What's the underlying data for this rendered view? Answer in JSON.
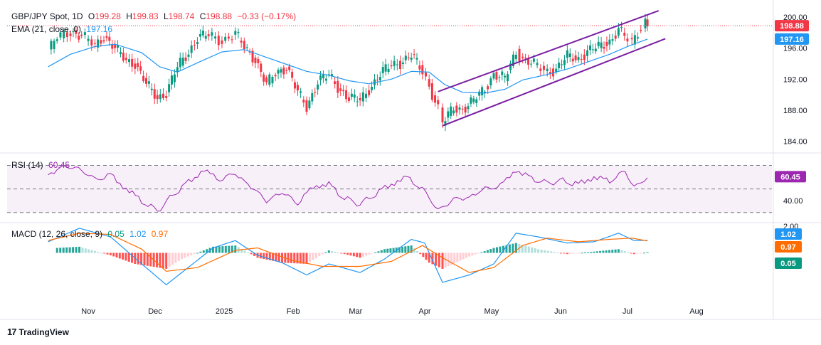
{
  "header": {
    "symbol": "GBP/JPY Spot, 1D",
    "open_label": "O",
    "open": "199.28",
    "high_label": "H",
    "high": "199.83",
    "low_label": "L",
    "low": "198.74",
    "close_label": "C",
    "close": "198.88",
    "change": "−0.33 (−0.17%)"
  },
  "ema_legend": {
    "label": "EMA (21, close, 0)",
    "value": "197.16"
  },
  "rsi_legend": {
    "label": "RSI (14)",
    "value": "60.45"
  },
  "macd_legend": {
    "label": "MACD (12, 26, close, 9)",
    "hist": "0.05",
    "macd": "1.02",
    "signal": "0.97"
  },
  "brand": {
    "name": "TradingView"
  },
  "colors": {
    "up": "#089981",
    "down": "#f23645",
    "ema": "#2196f3",
    "channel": "#7b1fa2",
    "rsi": "#9c27b0",
    "macd": "#2196f3",
    "signal": "#ff6d00"
  },
  "chart_data": [
    {
      "type": "candlestick",
      "title": "GBP/JPY Spot, 1D",
      "x_ticks": [
        "Nov",
        "Dec",
        "2025",
        "Feb",
        "Mar",
        "Apr",
        "May",
        "Jun",
        "Jul",
        "Aug"
      ],
      "y_ticks": [
        "200.00",
        "196.00",
        "192.00",
        "188.00",
        "184.00"
      ],
      "ylim": [
        182.6,
        200.9
      ],
      "price_tags": [
        {
          "value": 198.88,
          "label": "198.88",
          "color": "#f23645"
        },
        {
          "value": 197.16,
          "label": "197.16",
          "color": "#2196f3"
        }
      ],
      "close_path": [
        [
          "2024-10-14",
          195.6
        ],
        [
          "2024-10-18",
          197.3
        ],
        [
          "2024-10-24",
          198.2
        ],
        [
          "2024-10-29",
          197.5
        ],
        [
          "2024-11-04",
          196.3
        ],
        [
          "2024-11-08",
          197.6
        ],
        [
          "2024-11-13",
          195.9
        ],
        [
          "2024-11-18",
          194.4
        ],
        [
          "2024-11-22",
          194.1
        ],
        [
          "2024-11-27",
          191.3
        ],
        [
          "2024-12-02",
          189.6
        ],
        [
          "2024-12-06",
          190.3
        ],
        [
          "2024-12-11",
          193.5
        ],
        [
          "2024-12-16",
          195.5
        ],
        [
          "2024-12-20",
          197.4
        ],
        [
          "2024-12-25",
          197.6
        ],
        [
          "2024-12-31",
          197.0
        ],
        [
          "2025-01-06",
          197.8
        ],
        [
          "2025-01-10",
          196.1
        ],
        [
          "2025-01-15",
          194.6
        ],
        [
          "2025-01-20",
          191.2
        ],
        [
          "2025-01-24",
          192.8
        ],
        [
          "2025-01-29",
          193.6
        ],
        [
          "2025-02-03",
          190.2
        ],
        [
          "2025-02-07",
          188.4
        ],
        [
          "2025-02-12",
          191.8
        ],
        [
          "2025-02-17",
          192.4
        ],
        [
          "2025-02-21",
          191.0
        ],
        [
          "2025-02-26",
          189.6
        ],
        [
          "2025-03-03",
          189.2
        ],
        [
          "2025-03-07",
          190.8
        ],
        [
          "2025-03-12",
          192.6
        ],
        [
          "2025-03-17",
          193.8
        ],
        [
          "2025-03-21",
          194.2
        ],
        [
          "2025-03-26",
          195.0
        ],
        [
          "2025-03-31",
          193.0
        ],
        [
          "2025-04-03",
          191.2
        ],
        [
          "2025-04-07",
          188.2
        ],
        [
          "2025-04-09",
          186.3
        ],
        [
          "2025-04-14",
          188.3
        ],
        [
          "2025-04-18",
          188.2
        ],
        [
          "2025-04-23",
          189.2
        ],
        [
          "2025-04-28",
          190.8
        ],
        [
          "2025-05-02",
          192.7
        ],
        [
          "2025-05-07",
          192.0
        ],
        [
          "2025-05-12",
          195.6
        ],
        [
          "2025-05-15",
          194.7
        ],
        [
          "2025-05-20",
          193.8
        ],
        [
          "2025-05-26",
          193.0
        ],
        [
          "2025-05-30",
          193.3
        ],
        [
          "2025-06-04",
          194.9
        ],
        [
          "2025-06-09",
          194.6
        ],
        [
          "2025-06-13",
          195.6
        ],
        [
          "2025-06-18",
          196.1
        ],
        [
          "2025-06-23",
          196.9
        ],
        [
          "2025-06-27",
          198.4
        ],
        [
          "2025-07-01",
          197.0
        ],
        [
          "2025-07-03",
          196.6
        ],
        [
          "2025-07-07",
          198.8
        ],
        [
          "2025-07-09",
          199.6
        ],
        [
          "2025-07-10",
          198.88
        ]
      ],
      "ema21_path": [
        [
          "2024-10-14",
          193.6
        ],
        [
          "2024-10-24",
          195.2
        ],
        [
          "2024-11-04",
          196.2
        ],
        [
          "2024-11-13",
          196.5
        ],
        [
          "2024-11-25",
          195.4
        ],
        [
          "2024-12-03",
          193.6
        ],
        [
          "2024-12-11",
          192.9
        ],
        [
          "2024-12-20",
          194.1
        ],
        [
          "2024-12-31",
          195.5
        ],
        [
          "2025-01-10",
          195.8
        ],
        [
          "2025-01-20",
          194.8
        ],
        [
          "2025-01-29",
          193.9
        ],
        [
          "2025-02-07",
          193.0
        ],
        [
          "2025-02-17",
          192.5
        ],
        [
          "2025-02-26",
          191.8
        ],
        [
          "2025-03-07",
          191.4
        ],
        [
          "2025-03-17",
          192.0
        ],
        [
          "2025-03-26",
          193.0
        ],
        [
          "2025-04-03",
          192.9
        ],
        [
          "2025-04-10",
          191.3
        ],
        [
          "2025-04-18",
          190.3
        ],
        [
          "2025-04-28",
          190.2
        ],
        [
          "2025-05-07",
          190.7
        ],
        [
          "2025-05-15",
          191.9
        ],
        [
          "2025-05-26",
          192.6
        ],
        [
          "2025-06-04",
          193.3
        ],
        [
          "2025-06-13",
          194.2
        ],
        [
          "2025-06-23",
          195.2
        ],
        [
          "2025-07-01",
          196.2
        ],
        [
          "2025-07-10",
          197.16
        ]
      ],
      "channel_upper": [
        [
          "2025-04-07",
          190.4
        ],
        [
          "2025-07-15",
          200.8
        ]
      ],
      "channel_lower": [
        [
          "2025-04-09",
          186.0
        ],
        [
          "2025-07-18",
          197.2
        ]
      ],
      "last_price_line": 198.88
    },
    {
      "type": "line",
      "title": "RSI (14)",
      "y_ticks": [
        "60.45",
        "40.00"
      ],
      "levels": [
        70,
        50,
        30
      ],
      "ylim": [
        22,
        80
      ],
      "series": [
        {
          "name": "RSI (14)",
          "last": 60.45,
          "points": [
            [
              "2024-10-14",
              62
            ],
            [
              "2024-10-22",
              70
            ],
            [
              "2024-10-29",
              66
            ],
            [
              "2024-11-04",
              58
            ],
            [
              "2024-11-11",
              62
            ],
            [
              "2024-11-18",
              50
            ],
            [
              "2024-11-25",
              40
            ],
            [
              "2024-12-02",
              31
            ],
            [
              "2024-12-09",
              45
            ],
            [
              "2024-12-16",
              56
            ],
            [
              "2024-12-23",
              66
            ],
            [
              "2024-12-30",
              58
            ],
            [
              "2025-01-06",
              63
            ],
            [
              "2025-01-13",
              52
            ],
            [
              "2025-01-20",
              40
            ],
            [
              "2025-01-27",
              47
            ],
            [
              "2025-02-03",
              38
            ],
            [
              "2025-02-10",
              52
            ],
            [
              "2025-02-17",
              54
            ],
            [
              "2025-02-24",
              42
            ],
            [
              "2025-03-03",
              37
            ],
            [
              "2025-03-10",
              46
            ],
            [
              "2025-03-17",
              54
            ],
            [
              "2025-03-24",
              60
            ],
            [
              "2025-03-31",
              50
            ],
            [
              "2025-04-07",
              32
            ],
            [
              "2025-04-14",
              41
            ],
            [
              "2025-04-21",
              43
            ],
            [
              "2025-04-28",
              50
            ],
            [
              "2025-05-05",
              53
            ],
            [
              "2025-05-12",
              66
            ],
            [
              "2025-05-19",
              59
            ],
            [
              "2025-05-26",
              55
            ],
            [
              "2025-06-02",
              57
            ],
            [
              "2025-06-09",
              54
            ],
            [
              "2025-06-16",
              60
            ],
            [
              "2025-06-23",
              57
            ],
            [
              "2025-06-30",
              65
            ],
            [
              "2025-07-04",
              51
            ],
            [
              "2025-07-10",
              60.45
            ]
          ]
        }
      ]
    },
    {
      "type": "bar+line",
      "title": "MACD (12, 26, close, 9)",
      "y_ticks": [
        "2.00"
      ],
      "ylim": [
        -4.2,
        2.4
      ],
      "tags": [
        {
          "value": 1.02,
          "label": "1.02",
          "color": "#2196f3"
        },
        {
          "value": 0.97,
          "label": "0.97",
          "color": "#ff6d00"
        },
        {
          "value": 0.05,
          "label": "0.05",
          "color": "#089981"
        }
      ],
      "series": [
        {
          "name": "MACD",
          "points": [
            [
              "2024-10-14",
              0.9
            ],
            [
              "2024-10-28",
              2.0
            ],
            [
              "2024-11-11",
              1.3
            ],
            [
              "2024-11-25",
              -0.9
            ],
            [
              "2024-12-06",
              -2.6
            ],
            [
              "2024-12-13",
              -1.6
            ],
            [
              "2024-12-27",
              0.4
            ],
            [
              "2025-01-06",
              1.0
            ],
            [
              "2025-01-16",
              -0.2
            ],
            [
              "2025-01-27",
              -0.8
            ],
            [
              "2025-02-07",
              -1.8
            ],
            [
              "2025-02-17",
              -0.9
            ],
            [
              "2025-03-03",
              -1.6
            ],
            [
              "2025-03-14",
              -0.5
            ],
            [
              "2025-03-26",
              1.1
            ],
            [
              "2025-04-01",
              0.8
            ],
            [
              "2025-04-09",
              -2.4
            ],
            [
              "2025-04-21",
              -1.8
            ],
            [
              "2025-05-02",
              -0.9
            ],
            [
              "2025-05-12",
              1.6
            ],
            [
              "2025-05-22",
              1.3
            ],
            [
              "2025-06-04",
              0.8
            ],
            [
              "2025-06-16",
              0.9
            ],
            [
              "2025-06-27",
              1.6
            ],
            [
              "2025-07-04",
              1.0
            ],
            [
              "2025-07-10",
              1.02
            ]
          ]
        },
        {
          "name": "Signal",
          "points": [
            [
              "2024-10-14",
              1.0
            ],
            [
              "2024-10-28",
              1.6
            ],
            [
              "2024-11-11",
              1.5
            ],
            [
              "2024-11-25",
              0.3
            ],
            [
              "2024-12-06",
              -1.5
            ],
            [
              "2024-12-20",
              -1.2
            ],
            [
              "2025-01-06",
              0.2
            ],
            [
              "2025-01-16",
              0.4
            ],
            [
              "2025-01-31",
              -0.6
            ],
            [
              "2025-02-14",
              -1.1
            ],
            [
              "2025-03-03",
              -1.1
            ],
            [
              "2025-03-17",
              -0.7
            ],
            [
              "2025-03-31",
              0.6
            ],
            [
              "2025-04-09",
              -0.4
            ],
            [
              "2025-04-21",
              -1.6
            ],
            [
              "2025-05-02",
              -1.2
            ],
            [
              "2025-05-15",
              0.6
            ],
            [
              "2025-05-26",
              1.2
            ],
            [
              "2025-06-09",
              0.9
            ],
            [
              "2025-06-23",
              1.1
            ],
            [
              "2025-07-03",
              1.2
            ],
            [
              "2025-07-10",
              0.97
            ]
          ]
        }
      ],
      "histogram": [
        [
          "2024-10-18",
          0.4
        ],
        [
          "2024-10-28",
          0.5
        ],
        [
          "2024-11-11",
          -0.2
        ],
        [
          "2024-11-22",
          -0.9
        ],
        [
          "2024-12-06",
          -1.3
        ],
        [
          "2024-12-13",
          -0.5
        ],
        [
          "2024-12-27",
          0.5
        ],
        [
          "2025-01-06",
          0.6
        ],
        [
          "2025-01-16",
          -0.4
        ],
        [
          "2025-01-27",
          -0.8
        ],
        [
          "2025-02-07",
          -0.9
        ],
        [
          "2025-02-17",
          0.2
        ],
        [
          "2025-03-03",
          -0.4
        ],
        [
          "2025-03-14",
          0.3
        ],
        [
          "2025-03-26",
          0.6
        ],
        [
          "2025-04-03",
          -0.8
        ],
        [
          "2025-04-09",
          -1.3
        ],
        [
          "2025-04-21",
          -0.3
        ],
        [
          "2025-05-02",
          0.4
        ],
        [
          "2025-05-12",
          0.8
        ],
        [
          "2025-05-22",
          0.3
        ],
        [
          "2025-06-04",
          -0.1
        ],
        [
          "2025-06-16",
          0.1
        ],
        [
          "2025-06-27",
          0.3
        ],
        [
          "2025-07-04",
          -0.1
        ],
        [
          "2025-07-10",
          0.05
        ]
      ]
    }
  ]
}
